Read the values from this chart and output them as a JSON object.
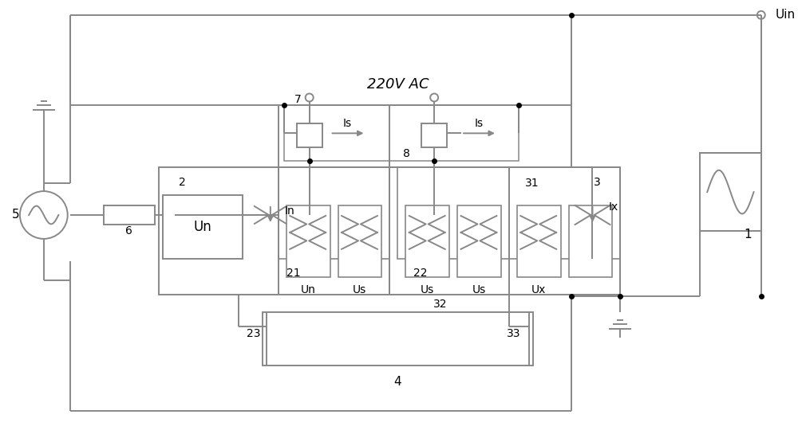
{
  "bg": "#ffffff",
  "lc": "#888888",
  "lw": 1.4,
  "title": "220V AC",
  "Uin": "Uin",
  "n1": "1",
  "n2": "2",
  "n3": "3",
  "n4": "4",
  "n5": "5",
  "n6": "6",
  "n7": "7",
  "n8": "8",
  "n21": "21",
  "n22": "22",
  "n23": "23",
  "n31": "31",
  "n32": "32",
  "n33": "33",
  "Un": "Un",
  "In": "In",
  "Is": "Is",
  "Us": "Us",
  "Ux": "Ux",
  "Ix": "Ix"
}
